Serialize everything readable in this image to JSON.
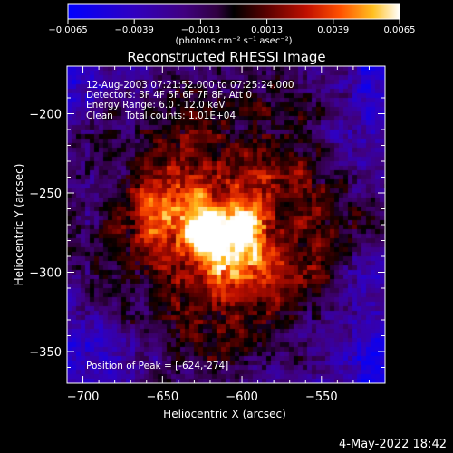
{
  "chart_data": {
    "type": "heatmap",
    "title": "Reconstructed RHESSI Image",
    "xlabel": "Heliocentric X (arcsec)",
    "ylabel": "Heliocentric Y (arcsec)",
    "xlim": [
      -710,
      -510
    ],
    "ylim": [
      -370,
      -170
    ],
    "x_ticks": [
      -700,
      -650,
      -600,
      -550
    ],
    "y_ticks": [
      -200,
      -250,
      -300,
      -350
    ],
    "colorbar": {
      "range": [
        -0.0065,
        0.0065
      ],
      "ticks": [
        -0.0065,
        -0.0039,
        -0.0013,
        0.0013,
        0.0039,
        0.0065
      ],
      "tick_labels": [
        "-0.0065",
        "-0.0039",
        "-0.0013",
        "0.0013",
        "0.0039",
        "0.0065"
      ],
      "units": "(photons cm⁻² s⁻¹ asec⁻²)"
    },
    "annotations": [
      "12-Aug-2003 07:21:52.000 to 07:25:24.000",
      "Detectors: 3F 4F 5F 6F 7F 8F, Att 0",
      "Energy Range: 6.0 - 12.0 keV",
      "Clean    Total counts: 1.01E+04"
    ],
    "peak_label": "Position of Peak = [-624,-274]",
    "peak": {
      "x": -624,
      "y": -274,
      "value": 0.0065
    },
    "features": [
      {
        "x": -624,
        "y": -274,
        "sigma": 9,
        "amp": 0.0065
      },
      {
        "x": -598,
        "y": -270,
        "sigma": 8,
        "amp": 0.0048
      },
      {
        "x": -612,
        "y": -282,
        "sigma": 22,
        "amp": 0.0028
      },
      {
        "x": -640,
        "y": -250,
        "sigma": 16,
        "amp": 0.002
      },
      {
        "x": -590,
        "y": -300,
        "sigma": 16,
        "amp": 0.0016
      },
      {
        "x": -660,
        "y": -270,
        "sigma": 14,
        "amp": 0.0018
      },
      {
        "x": -575,
        "y": -240,
        "sigma": 14,
        "amp": 0.0013
      },
      {
        "x": -690,
        "y": -245,
        "sigma": 12,
        "amp": -0.0022
      },
      {
        "x": -530,
        "y": -220,
        "sigma": 16,
        "amp": -0.0022
      },
      {
        "x": -525,
        "y": -300,
        "sigma": 14,
        "amp": -0.002
      },
      {
        "x": -690,
        "y": -345,
        "sigma": 16,
        "amp": -0.0015
      },
      {
        "x": -520,
        "y": -345,
        "sigma": 15,
        "amp": -0.0022
      }
    ]
  },
  "footer": {
    "date": "4-May-2022 18:42"
  },
  "colors": {
    "background": "#000000",
    "foreground": "#ffffff"
  }
}
